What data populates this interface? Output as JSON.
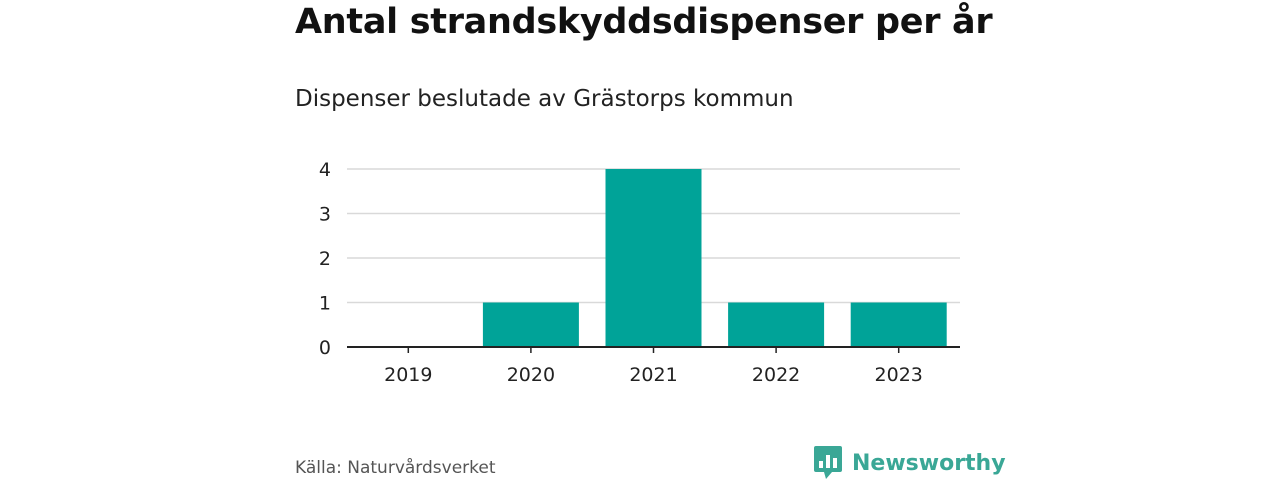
{
  "brand": {
    "name": "Newsworthy",
    "color": "#3aa796"
  },
  "source": "Källa: Naturvårdsverket",
  "chart_data": {
    "type": "bar",
    "title": "Antal strandskyddsdispenser per år",
    "subtitle": "Dispenser beslutade av Grästorps kommun",
    "categories": [
      "2019",
      "2020",
      "2021",
      "2022",
      "2023"
    ],
    "values": [
      0,
      1,
      4,
      1,
      1
    ],
    "ylim": [
      0,
      4
    ],
    "yticks": [
      "0",
      "1",
      "2",
      "3",
      "4"
    ],
    "xlabel": "",
    "ylabel": "",
    "grid": true,
    "bar_color": "#00a398"
  }
}
